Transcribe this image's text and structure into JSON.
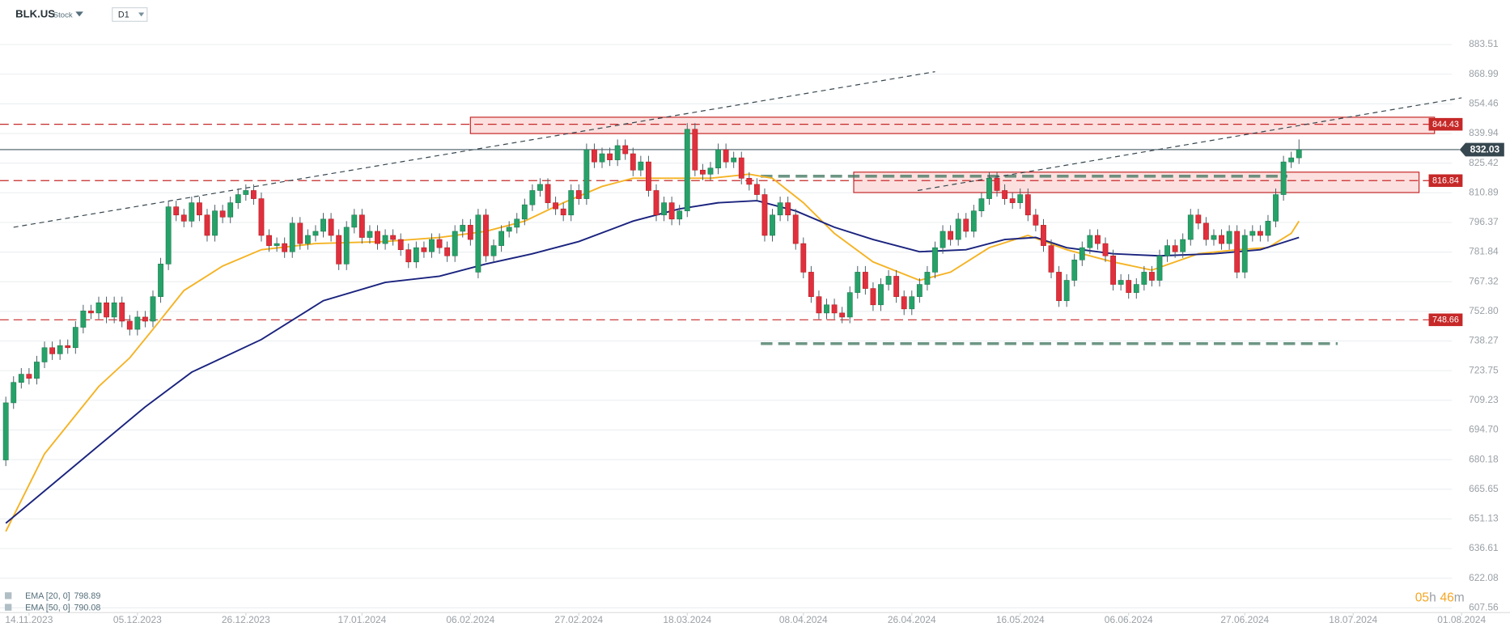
{
  "chart_data": {
    "type": "candlestick",
    "title": "BLK.US",
    "instrument_type": "Stock",
    "timeframe": "D1",
    "open": [
      680,
      708,
      718,
      722,
      720,
      728,
      735,
      732,
      736,
      735,
      745,
      753,
      752,
      757,
      750,
      757,
      748,
      744,
      750,
      748,
      760,
      776,
      804,
      800,
      797,
      806,
      800,
      790,
      802,
      799,
      806,
      810,
      812,
      808,
      790,
      785,
      786,
      782,
      796,
      786,
      790,
      792,
      798,
      790,
      776,
      794,
      800,
      789,
      792,
      786,
      790,
      788,
      783,
      777,
      784,
      782,
      788,
      784,
      780,
      792,
      795,
      772,
      800,
      780,
      785,
      792,
      794,
      798,
      805,
      812,
      815,
      806,
      803,
      800,
      812,
      808,
      832,
      826,
      830,
      827,
      834,
      830,
      822,
      826,
      812,
      800,
      806,
      798,
      802,
      842,
      822,
      820,
      823,
      832,
      826,
      828,
      818,
      815,
      810,
      790,
      800,
      806,
      800,
      786,
      772,
      760,
      752,
      756,
      752,
      750,
      762,
      772,
      764,
      756,
      766,
      770,
      760,
      754,
      760,
      766,
      772,
      784,
      792,
      788,
      798,
      792,
      802,
      808,
      818,
      812,
      808,
      806,
      810,
      800,
      795,
      785,
      772,
      758,
      768,
      778,
      784,
      790,
      786,
      780,
      766,
      768,
      762,
      766,
      772,
      768,
      780,
      785,
      782,
      788,
      800,
      796,
      788,
      790,
      786,
      792,
      772,
      790,
      792,
      790,
      797,
      810,
      826,
      828
    ],
    "high": [
      711,
      721,
      725,
      725,
      731,
      738,
      738,
      739,
      739,
      748,
      756,
      756,
      760,
      760,
      760,
      760,
      751,
      753,
      753,
      763,
      779,
      807,
      807,
      803,
      809,
      809,
      803,
      805,
      805,
      809,
      813,
      815,
      815,
      811,
      793,
      789,
      789,
      799,
      799,
      793,
      795,
      801,
      801,
      793,
      797,
      803,
      803,
      795,
      795,
      793,
      793,
      791,
      786,
      787,
      787,
      791,
      791,
      787,
      795,
      798,
      798,
      803,
      803,
      788,
      795,
      797,
      801,
      808,
      815,
      818,
      818,
      809,
      806,
      815,
      815,
      835,
      835,
      833,
      833,
      837,
      837,
      833,
      829,
      829,
      815,
      809,
      809,
      805,
      845,
      845,
      825,
      826,
      835,
      835,
      831,
      831,
      821,
      818,
      813,
      803,
      809,
      809,
      803,
      789,
      775,
      763,
      759,
      759,
      755,
      765,
      775,
      775,
      767,
      769,
      773,
      773,
      763,
      763,
      769,
      775,
      787,
      795,
      795,
      801,
      801,
      805,
      811,
      821,
      821,
      815,
      811,
      813,
      813,
      803,
      798,
      788,
      775,
      771,
      781,
      787,
      793,
      793,
      789,
      783,
      771,
      771,
      769,
      775,
      775,
      783,
      788,
      788,
      791,
      803,
      803,
      799,
      793,
      793,
      795,
      795,
      793,
      795,
      795,
      800,
      813,
      829,
      831,
      837
    ],
    "low": [
      677,
      705,
      715,
      717,
      717,
      725,
      729,
      729,
      732,
      732,
      742,
      749,
      749,
      747,
      747,
      745,
      741,
      741,
      745,
      745,
      757,
      773,
      797,
      794,
      794,
      797,
      787,
      787,
      796,
      796,
      803,
      807,
      805,
      787,
      782,
      782,
      779,
      779,
      783,
      783,
      787,
      789,
      787,
      773,
      773,
      791,
      786,
      786,
      783,
      783,
      785,
      780,
      774,
      774,
      779,
      779,
      781,
      777,
      777,
      789,
      785,
      769,
      777,
      777,
      782,
      789,
      791,
      795,
      802,
      809,
      803,
      800,
      797,
      797,
      805,
      805,
      823,
      823,
      824,
      824,
      827,
      819,
      819,
      809,
      797,
      797,
      795,
      795,
      799,
      819,
      817,
      817,
      820,
      823,
      823,
      815,
      812,
      807,
      787,
      787,
      797,
      797,
      783,
      769,
      757,
      749,
      749,
      749,
      747,
      747,
      759,
      761,
      753,
      753,
      763,
      757,
      751,
      751,
      757,
      763,
      769,
      781,
      785,
      785,
      789,
      789,
      799,
      805,
      809,
      805,
      803,
      803,
      797,
      792,
      782,
      769,
      755,
      755,
      765,
      775,
      781,
      783,
      777,
      763,
      763,
      759,
      759,
      763,
      765,
      765,
      777,
      779,
      779,
      785,
      793,
      785,
      785,
      783,
      783,
      769,
      769,
      787,
      787,
      787,
      794,
      807,
      823,
      825
    ],
    "close": [
      708,
      718,
      722,
      720,
      728,
      735,
      732,
      736,
      735,
      745,
      753,
      752,
      757,
      750,
      757,
      748,
      744,
      750,
      748,
      760,
      776,
      804,
      800,
      797,
      806,
      800,
      790,
      802,
      799,
      806,
      810,
      812,
      808,
      790,
      785,
      786,
      782,
      796,
      786,
      790,
      792,
      798,
      790,
      776,
      794,
      800,
      789,
      792,
      786,
      790,
      788,
      783,
      777,
      784,
      782,
      788,
      784,
      780,
      792,
      795,
      788,
      800,
      780,
      785,
      792,
      794,
      798,
      805,
      812,
      815,
      806,
      803,
      800,
      812,
      808,
      832,
      826,
      830,
      827,
      834,
      830,
      822,
      826,
      812,
      800,
      806,
      798,
      802,
      842,
      822,
      820,
      823,
      832,
      826,
      828,
      818,
      815,
      810,
      790,
      800,
      806,
      800,
      786,
      772,
      760,
      752,
      756,
      752,
      750,
      762,
      772,
      764,
      756,
      766,
      770,
      760,
      754,
      760,
      766,
      772,
      784,
      792,
      788,
      798,
      792,
      802,
      808,
      818,
      812,
      808,
      806,
      810,
      800,
      795,
      785,
      772,
      758,
      768,
      778,
      784,
      790,
      786,
      780,
      766,
      768,
      762,
      766,
      772,
      768,
      780,
      785,
      782,
      788,
      800,
      796,
      788,
      790,
      786,
      792,
      772,
      790,
      792,
      790,
      797,
      810,
      826,
      828,
      832
    ],
    "colors": {
      "up": "#26a269",
      "down": "#e0303e"
    },
    "xlim": [
      -0.75,
      188
    ],
    "xticks": [
      {
        "value": 3,
        "label": "14.11.2023"
      },
      {
        "value": 17,
        "label": "05.12.2023"
      },
      {
        "value": 31,
        "label": "26.12.2023"
      },
      {
        "value": 46,
        "label": "17.01.2024"
      },
      {
        "value": 60,
        "label": "06.02.2024"
      },
      {
        "value": 74,
        "label": "27.02.2024"
      },
      {
        "value": 88,
        "label": "18.03.2024"
      },
      {
        "value": 103,
        "label": "08.04.2024"
      },
      {
        "value": 117,
        "label": "26.04.2024"
      },
      {
        "value": 131,
        "label": "16.05.2024"
      },
      {
        "value": 145,
        "label": "06.06.2024"
      },
      {
        "value": 160,
        "label": "27.06.2024"
      },
      {
        "value": 174,
        "label": "18.07.2024"
      },
      {
        "value": 188,
        "label": "01.08.2024"
      }
    ],
    "ylim": [
      601.9,
      891.1
    ],
    "yticks": [
      883.51,
      868.99,
      854.46,
      839.94,
      825.42,
      810.89,
      796.37,
      781.84,
      767.32,
      {
        "value": 752.8,
        "label": "752.80"
      },
      738.27,
      723.75,
      709.23,
      {
        "value": 694.7,
        "label": "694.70"
      },
      680.18,
      665.65,
      651.13,
      636.61,
      622.08,
      607.56
    ],
    "grid": true,
    "series": [
      {
        "name": "EMA [20, 0]",
        "last_value": 798.89,
        "color": "#f5b324",
        "x": [
          0,
          5,
          12,
          16,
          19,
          23,
          28,
          33,
          40,
          49,
          56,
          62,
          67,
          72,
          77,
          81,
          86,
          91,
          96,
          99,
          103,
          107,
          112,
          118,
          122,
          127,
          132,
          137,
          143,
          148,
          154,
          159,
          163,
          166,
          167
        ],
        "values": [
          645,
          683,
          716,
          730,
          744,
          763,
          775,
          783,
          786,
          787,
          789,
          792,
          797,
          806,
          814,
          818,
          818,
          818,
          820,
          818,
          806,
          791,
          777,
          768,
          772,
          784,
          790,
          783,
          777,
          773,
          781,
          783,
          784,
          791,
          797
        ]
      },
      {
        "name": "EMA [50, 0]",
        "last_value": 790.08,
        "color": "#1a237e",
        "x": [
          0,
          6,
          12,
          18,
          24,
          33,
          41,
          49,
          56,
          62,
          68,
          74,
          81,
          87,
          92,
          97,
          102,
          107,
          112,
          118,
          124,
          129,
          133,
          137,
          143,
          149,
          156,
          162,
          167
        ],
        "values": [
          649,
          668,
          687,
          706,
          723,
          739,
          758,
          767,
          770,
          776,
          781,
          787,
          797,
          803,
          806,
          807,
          802,
          794,
          788,
          782,
          783,
          788,
          789,
          784,
          781,
          780,
          781,
          783,
          789
        ]
      }
    ],
    "levels": [
      {
        "value": 844.43,
        "color": "#c62828"
      },
      {
        "value": 816.84,
        "color": "#c62828"
      },
      {
        "value": 748.66,
        "color": "#c62828"
      }
    ],
    "last_price": 832.03,
    "zones": [
      {
        "x": [
          60,
          184.5
        ],
        "y": [
          839.9,
          847.9
        ]
      },
      {
        "x": [
          109.5,
          182.5
        ],
        "y": [
          811,
          821
        ]
      }
    ],
    "support_lines": [
      {
        "x": [
          97.5,
          165.5
        ],
        "y": [
          819,
          819
        ]
      },
      {
        "x": [
          97.5,
          172
        ],
        "y": [
          737,
          737
        ]
      }
    ],
    "trend_lines": [
      {
        "x": [
          1,
          120
        ],
        "y": [
          794,
          870.2
        ]
      },
      {
        "x": [
          117.75,
          188
        ],
        "y": [
          812,
          857.4
        ]
      }
    ],
    "countdown": {
      "hours": "05",
      "hours_unit": "h",
      "minutes": "46",
      "minutes_unit": "m"
    }
  }
}
